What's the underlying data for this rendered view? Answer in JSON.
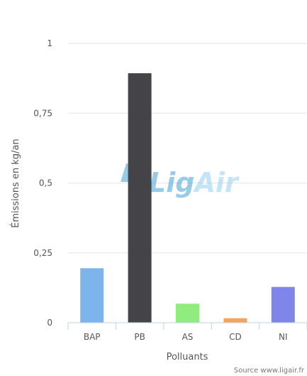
{
  "chart_data": {
    "type": "bar",
    "categories": [
      "BAP",
      "PB",
      "AS",
      "CD",
      "NI"
    ],
    "values": [
      0.195,
      0.893,
      0.068,
      0.016,
      0.128
    ],
    "colors": [
      "#7cb5ec",
      "#434348",
      "#90ed7d",
      "#f7a35c",
      "#8085e9"
    ],
    "ylabel": "Émissions en kg/an",
    "xlabel": "Polluants",
    "ylim": [
      0,
      1
    ],
    "yticks": [
      0,
      0.25,
      0.5,
      0.75,
      1
    ],
    "ytick_labels": [
      "0",
      "0,25",
      "0,5",
      "0,75",
      "1"
    ],
    "grid": true,
    "legend": "none"
  },
  "credit": "Source www.ligair.fr",
  "watermark": {
    "lig": "Lig",
    "air": "Air",
    "lig_color": "#1d8fc8",
    "air_color": "#7cc7ea"
  }
}
